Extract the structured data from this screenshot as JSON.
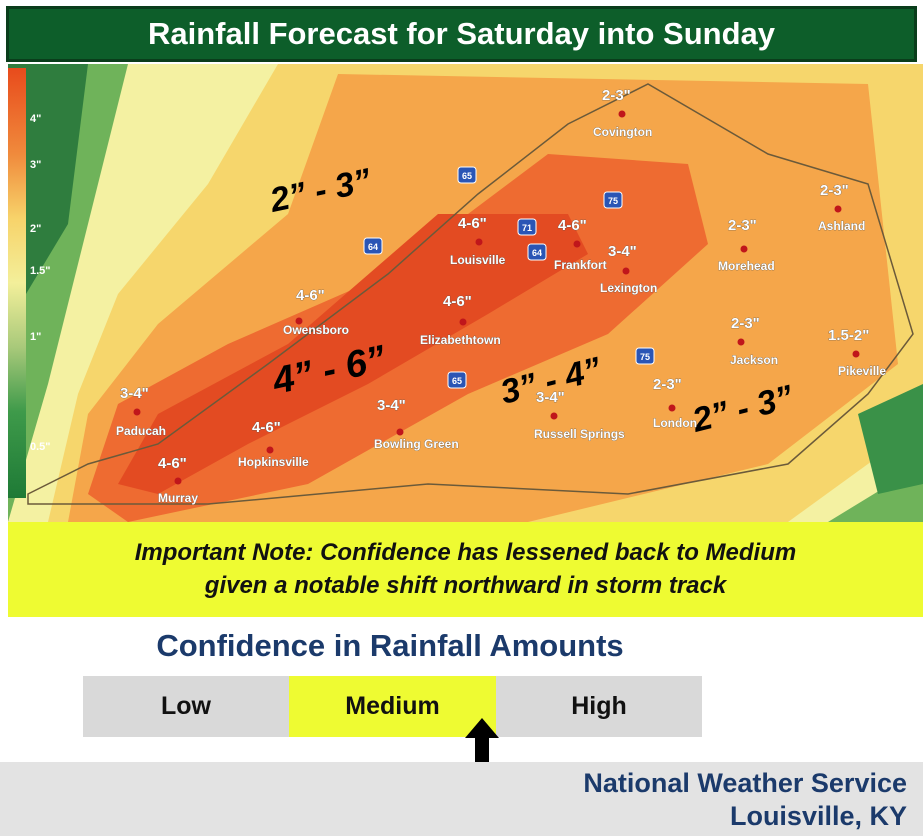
{
  "title": "Rainfall Forecast for Saturday into Sunday",
  "legend": {
    "ticks": [
      "4\"",
      "3\"",
      "2\"",
      "1.5\"",
      "1\"",
      "0.5\""
    ]
  },
  "map": {
    "highways": [
      "65",
      "71",
      "75",
      "64",
      "64",
      "65",
      "75"
    ],
    "big_labels": [
      "2” - 3”",
      "4” - 6”",
      "3” - 4”",
      "2” - 3”"
    ],
    "cities": [
      {
        "name": "Covington",
        "amount": "2-3\""
      },
      {
        "name": "Ashland",
        "amount": "2-3\""
      },
      {
        "name": "Morehead",
        "amount": "2-3\""
      },
      {
        "name": "Louisville",
        "amount": "4-6\""
      },
      {
        "name": "Frankfort",
        "amount": "4-6\""
      },
      {
        "name": "Lexington",
        "amount": "3-4\""
      },
      {
        "name": "Owensboro",
        "amount": "4-6\""
      },
      {
        "name": "Elizabethtown",
        "amount": "4-6\""
      },
      {
        "name": "Jackson",
        "amount": "2-3\""
      },
      {
        "name": "Pikeville",
        "amount": "1.5-2\""
      },
      {
        "name": "Paducah",
        "amount": "3-4\""
      },
      {
        "name": "Hopkinsville",
        "amount": "4-6\""
      },
      {
        "name": "Bowling Green",
        "amount": "3-4\""
      },
      {
        "name": "Russell Springs",
        "amount": "3-4\""
      },
      {
        "name": "London",
        "amount": "2-3\""
      },
      {
        "name": "Murray",
        "amount": "4-6\""
      }
    ]
  },
  "note": {
    "line1": "Important Note: Confidence has lessened back to Medium",
    "line2": "given a notable shift northward in storm track"
  },
  "confidence": {
    "title": "Confidence in Rainfall Amounts",
    "levels": [
      {
        "label": "Low",
        "color": "#d9d9d9"
      },
      {
        "label": "Medium",
        "color": "#eefb32"
      },
      {
        "label": "High",
        "color": "#d9d9d9"
      }
    ],
    "selected": "Medium"
  },
  "footer": {
    "org": "National Weather Service",
    "office": "Louisville, KY"
  }
}
